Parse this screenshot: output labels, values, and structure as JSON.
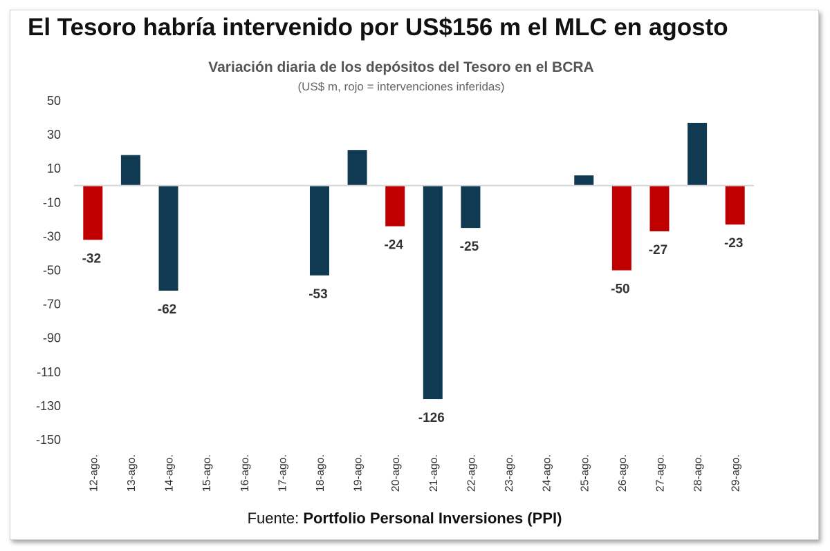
{
  "title": "El Tesoro habría intervenido por US$156 m el MLC en agosto",
  "source": {
    "prefix": "Fuente: ",
    "name": "Portfolio Personal Inversiones (PPI)"
  },
  "colors": {
    "normal": "#0f3a52",
    "intervention": "#c00000",
    "axis": "#d6d6d6"
  },
  "chart_data": {
    "type": "bar",
    "title": "Variación diaria de los depósitos del Tesoro en el BCRA",
    "subtitle": "(US$ m, rojo = intervenciones inferidas)",
    "categories": [
      "12-ago.",
      "13-ago.",
      "14-ago.",
      "15-ago.",
      "16-ago.",
      "17-ago.",
      "18-ago.",
      "19-ago.",
      "20-ago.",
      "21-ago.",
      "22-ago.",
      "23-ago.",
      "24-ago.",
      "25-ago.",
      "26-ago.",
      "27-ago.",
      "28-ago.",
      "29-ago."
    ],
    "values": [
      -32,
      18,
      -62,
      null,
      null,
      null,
      -53,
      21,
      -24,
      -126,
      -25,
      null,
      null,
      6,
      -50,
      -27,
      37,
      -23
    ],
    "data_labels": [
      "-32",
      "",
      "-62",
      "",
      "",
      "",
      "-53",
      "",
      "-24",
      "-126",
      "-25",
      "",
      "",
      "",
      "-50",
      "-27",
      "",
      "-23"
    ],
    "intervention": [
      true,
      false,
      false,
      false,
      false,
      false,
      false,
      false,
      true,
      false,
      false,
      false,
      false,
      false,
      true,
      true,
      false,
      true
    ],
    "ylim": [
      -150,
      50
    ],
    "yticks": [
      50,
      30,
      10,
      -10,
      -30,
      -50,
      -70,
      -90,
      -110,
      -130,
      -150
    ],
    "xlabel": "",
    "ylabel": "",
    "grid": false,
    "legend": "none"
  }
}
